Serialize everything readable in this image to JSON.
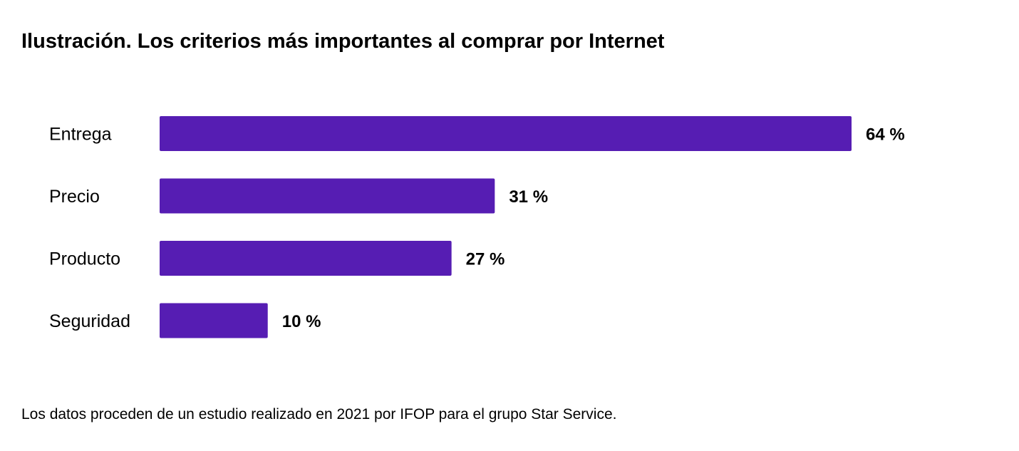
{
  "chart_data": {
    "type": "bar",
    "orientation": "horizontal",
    "title": "Ilustración. Los criterios más importantes al comprar por Internet",
    "categories": [
      "Entrega",
      "Precio",
      "Producto",
      "Seguridad"
    ],
    "values": [
      64,
      31,
      27,
      10
    ],
    "value_labels": [
      "64 %",
      "31 %",
      "27 %",
      "10 %"
    ],
    "unit": "%",
    "bar_color": "#561DB3",
    "grid": false,
    "footnote": "Los datos proceden de un estudio realizado en 2021 por IFOP para el grupo Star Service."
  }
}
